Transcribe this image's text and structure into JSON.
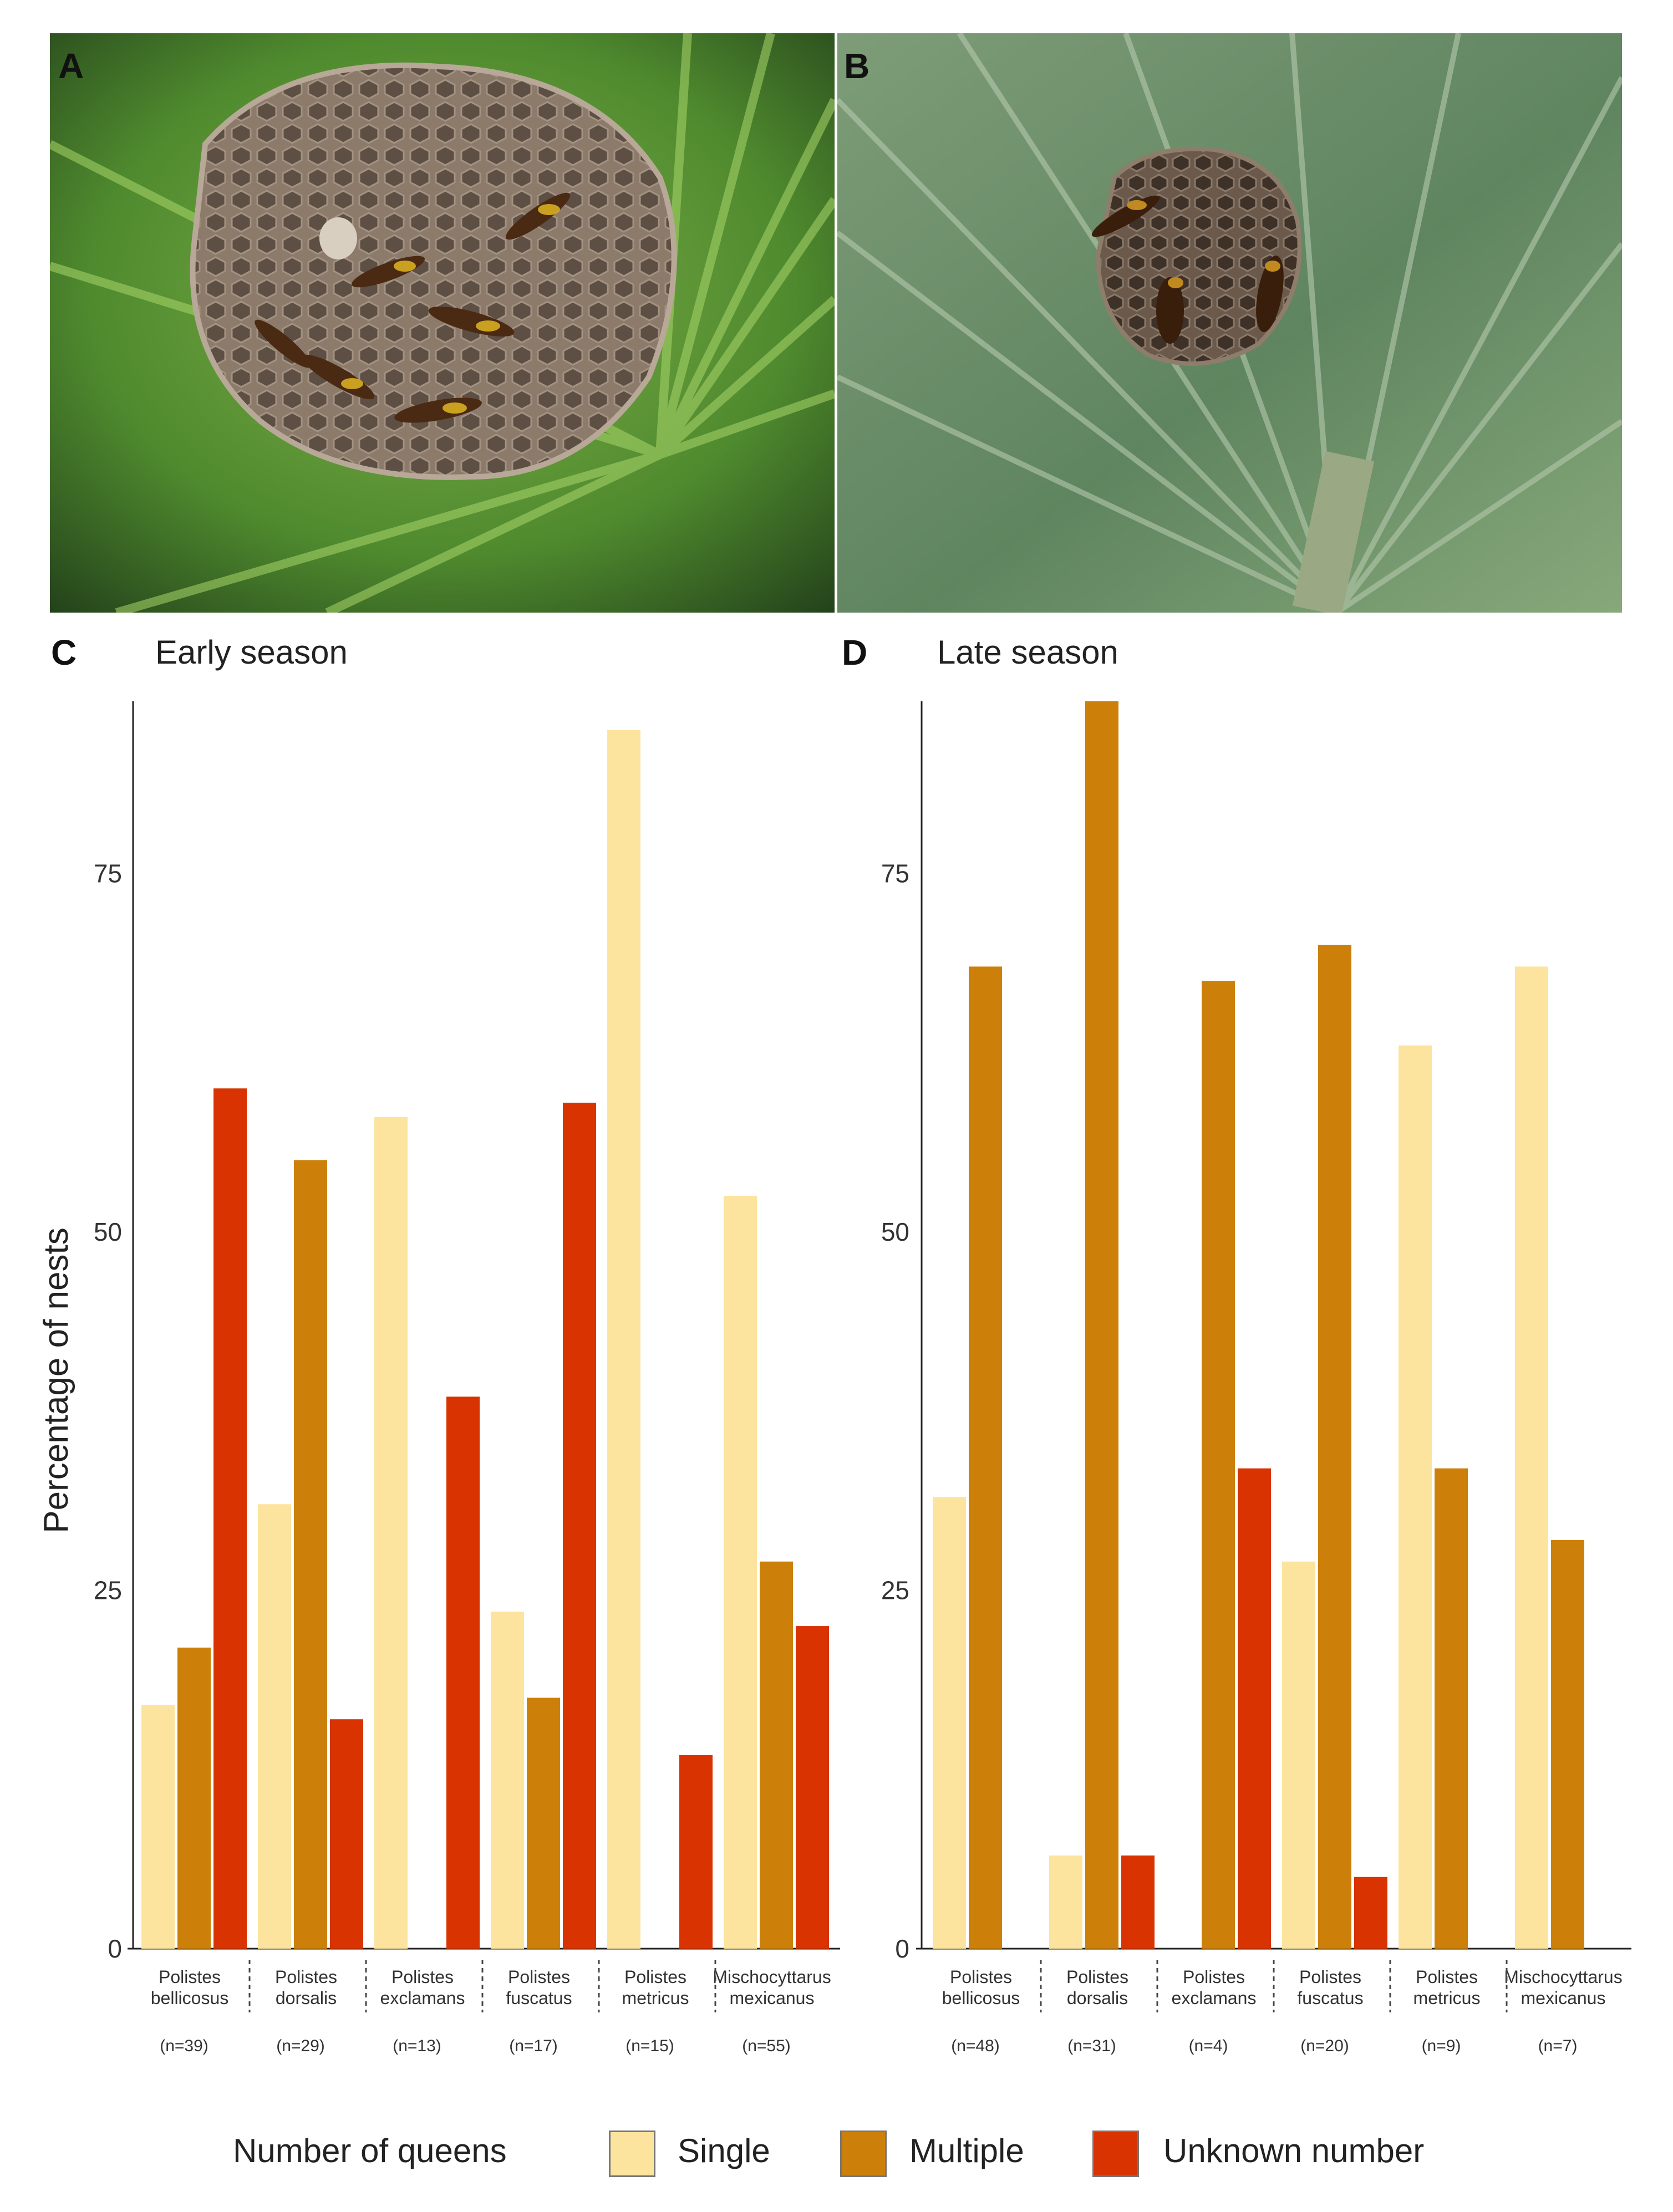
{
  "panels": {
    "a": "A",
    "b": "B",
    "c": "C",
    "d": "D"
  },
  "photos": {
    "a_icon": "wasp-nest-photo",
    "b_icon": "wasp-nest-photo"
  },
  "colors": {
    "single": "#fde49e",
    "multiple": "#cc800a",
    "unknown": "#d83300",
    "axis": "#222222"
  },
  "chart_data": [
    {
      "type": "bar",
      "title": "Early season",
      "ylabel": "Percentage of nests",
      "xlabel": "",
      "ylim": [
        0,
        87
      ],
      "yticks": [
        "0",
        "25",
        "50",
        "75"
      ],
      "categories": [
        {
          "line1": "Polistes",
          "line2": "bellicosus",
          "n": "(n=39)"
        },
        {
          "line1": "Polistes",
          "line2": "dorsalis",
          "n": "(n=29)"
        },
        {
          "line1": "Polistes",
          "line2": "exclamans",
          "n": "(n=13)"
        },
        {
          "line1": "Polistes",
          "line2": "fuscatus",
          "n": "(n=17)"
        },
        {
          "line1": "Polistes",
          "line2": "metricus",
          "n": "(n=15)"
        },
        {
          "line1": "Mischocyttarus",
          "line2": "mexicanus",
          "n": "(n=55)"
        }
      ],
      "series": [
        {
          "name": "Single",
          "values": [
            17,
            31,
            58,
            23.5,
            85,
            52.5
          ]
        },
        {
          "name": "Multiple",
          "values": [
            21,
            55,
            0,
            17.5,
            0,
            27
          ]
        },
        {
          "name": "Unknown number",
          "values": [
            60,
            16,
            38.5,
            59,
            13.5,
            22.5
          ]
        }
      ]
    },
    {
      "type": "bar",
      "title": "Late season",
      "ylabel": "",
      "xlabel": "",
      "ylim": [
        0,
        87
      ],
      "yticks": [
        "0",
        "25",
        "50",
        "75"
      ],
      "categories": [
        {
          "line1": "Polistes",
          "line2": "bellicosus",
          "n": "(n=48)"
        },
        {
          "line1": "Polistes",
          "line2": "dorsalis",
          "n": "(n=31)"
        },
        {
          "line1": "Polistes",
          "line2": "exclamans",
          "n": "(n=4)"
        },
        {
          "line1": "Polistes",
          "line2": "fuscatus",
          "n": "(n=20)"
        },
        {
          "line1": "Polistes",
          "line2": "metricus",
          "n": "(n=9)"
        },
        {
          "line1": "Mischocyttarus",
          "line2": "mexicanus",
          "n": "(n=7)"
        }
      ],
      "series": [
        {
          "name": "Single",
          "values": [
            31.5,
            6.5,
            0,
            27,
            63,
            68.5
          ]
        },
        {
          "name": "Multiple",
          "values": [
            68.5,
            87,
            67.5,
            70,
            33.5,
            28.5
          ]
        },
        {
          "name": "Unknown number",
          "values": [
            0,
            6.5,
            33.5,
            5,
            0,
            0
          ]
        }
      ]
    }
  ],
  "legend": {
    "title": "Number of queens",
    "single": "Single",
    "multiple": "Multiple",
    "unknown": "Unknown number"
  }
}
